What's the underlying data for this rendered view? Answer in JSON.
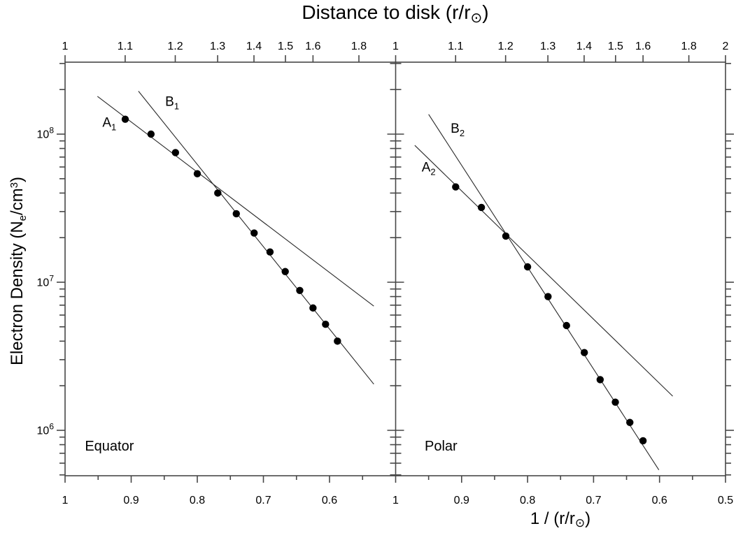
{
  "title": {
    "pre": "Distance to disk (r/r",
    "sun": "⊙",
    "post": ")"
  },
  "xlabel": {
    "pre": "1 / (r/r",
    "sun": "⊙",
    "post": ")"
  },
  "ylabel": {
    "pre": "Electron Density (N",
    "sub": "e",
    "mid": "/cm",
    "sup": "3",
    "post": ")"
  },
  "colors": {
    "background": "#ffffff",
    "axis": "#474747",
    "data_line": "#2a2a2a",
    "point": "#000000",
    "text": "#000000"
  },
  "chart_data": {
    "type": "scatter",
    "y_axis": {
      "scale": "log",
      "label": "Electron Density (Ne/cm3)",
      "range": [
        490000.0,
        310000000.0
      ],
      "major_exponents": [
        8,
        7,
        6
      ],
      "minor_ticks": "2-9 per decade"
    },
    "x_axis": {
      "bottom_label": "1 / (r/r_sun)",
      "top_label": "Distance to disk (r/r_sun)",
      "direction": "decreasing",
      "panel_range": [
        1.0,
        0.5
      ],
      "bottom_major_left": [
        1.0,
        0.9,
        0.8,
        0.7,
        0.6
      ],
      "bottom_major_right": [
        1.0,
        0.9,
        0.8,
        0.7,
        0.6,
        0.5
      ],
      "bottom_minor": [
        0.95,
        0.85,
        0.75,
        0.65,
        0.55
      ],
      "top_ticks_left": [
        1.0,
        1.1,
        1.2,
        1.3,
        1.4,
        1.5,
        1.6,
        1.8
      ],
      "top_ticks_right": [
        1.0,
        1.1,
        1.2,
        1.3,
        1.4,
        1.5,
        1.6,
        1.8,
        2.0
      ]
    },
    "panels": [
      {
        "name": "equator",
        "label": "Equator",
        "label_anchor": {
          "inv_r": 0.97,
          "ne": 730000.0
        },
        "points": {
          "r": [
            1.1,
            1.15,
            1.2,
            1.25,
            1.3,
            1.35,
            1.4,
            1.45,
            1.5,
            1.55,
            1.6,
            1.65,
            1.7
          ],
          "inv_r": [
            0.909,
            0.87,
            0.833,
            0.8,
            0.769,
            0.741,
            0.714,
            0.69,
            0.667,
            0.645,
            0.625,
            0.606,
            0.588
          ],
          "ne": [
            126000000.0,
            100000000.0,
            75000000.0,
            54000000.0,
            40000000.0,
            29000000.0,
            21500000.0,
            16000000.0,
            11800000.0,
            8800000.0,
            6700000.0,
            5200000.0,
            4000000.0
          ]
        },
        "lines": [
          {
            "label": "A",
            "sub": "1",
            "x1": 0.951,
            "y1": 180000000.0,
            "x2": 0.533,
            "y2": 6900000.0,
            "label_x": 0.933,
            "label_y": 112000000.0
          },
          {
            "label": "B",
            "sub": "1",
            "x1": 0.889,
            "y1": 195000000.0,
            "x2": 0.533,
            "y2": 2050000.0,
            "label_x": 0.838,
            "label_y": 155000000.0
          }
        ]
      },
      {
        "name": "polar",
        "label": "Polar",
        "label_anchor": {
          "inv_r": 0.956,
          "ne": 730000.0
        },
        "points": {
          "r": [
            1.1,
            1.15,
            1.2,
            1.25,
            1.3,
            1.35,
            1.4,
            1.45,
            1.5,
            1.55,
            1.6
          ],
          "inv_r": [
            0.909,
            0.87,
            0.833,
            0.8,
            0.769,
            0.741,
            0.714,
            0.69,
            0.667,
            0.645,
            0.625
          ],
          "ne": [
            44000000.0,
            32000000.0,
            20500000.0,
            12700000.0,
            8000000.0,
            5100000.0,
            3350000.0,
            2200000.0,
            1550000.0,
            1130000.0,
            850000.0
          ]
        },
        "lines": [
          {
            "label": "A",
            "sub": "2",
            "x1": 0.971,
            "y1": 84000000.0,
            "x2": 0.58,
            "y2": 1700000.0,
            "label_x": 0.95,
            "label_y": 56000000.0
          },
          {
            "label": "B",
            "sub": "2",
            "x1": 0.95,
            "y1": 136000000.0,
            "x2": 0.601,
            "y2": 540000.0,
            "label_x": 0.906,
            "label_y": 102000000.0
          }
        ]
      }
    ]
  }
}
